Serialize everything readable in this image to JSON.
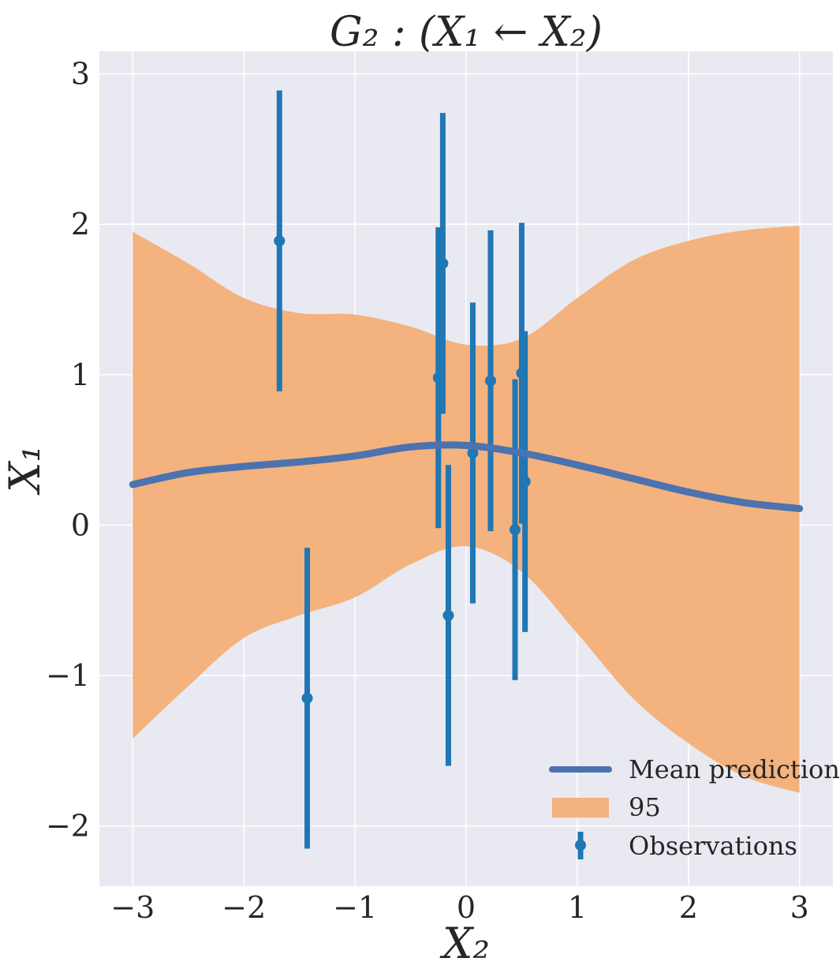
{
  "chart_data": {
    "type": "line",
    "title": "G₂ : (X₁ ← X₂)",
    "xlabel": "X₂",
    "ylabel": "X₁",
    "xlim": [
      -3.3,
      3.3
    ],
    "ylim": [
      -2.4,
      3.15
    ],
    "xticks": [
      -3,
      -2,
      -1,
      0,
      1,
      2,
      3
    ],
    "xtick_labels": [
      "−3",
      "−2",
      "−1",
      "0",
      "1",
      "2",
      "3"
    ],
    "yticks": [
      -2,
      -1,
      0,
      1,
      2,
      3
    ],
    "ytick_labels": [
      "−2",
      "−1",
      "0",
      "1",
      "2",
      "3"
    ],
    "grid": true,
    "legend_position": "lower-right",
    "colors": {
      "background": "#e9e9f1",
      "grid": "#ffffff",
      "mean": "#4c72b0",
      "band": "#f4b27e",
      "observations": "#1f77b4"
    },
    "series": [
      {
        "name": "Mean prediction",
        "x": [
          -3,
          -2.5,
          -2,
          -1.5,
          -1,
          -0.5,
          0,
          0.5,
          1,
          1.5,
          2,
          2.5,
          3
        ],
        "y": [
          0.27,
          0.35,
          0.39,
          0.42,
          0.46,
          0.52,
          0.53,
          0.48,
          0.4,
          0.31,
          0.22,
          0.15,
          0.11
        ]
      },
      {
        "name": "95",
        "type": "area",
        "x": [
          -3,
          -2.5,
          -2,
          -1.5,
          -1,
          -0.5,
          0,
          0.5,
          1,
          1.5,
          2,
          2.5,
          3
        ],
        "upper": [
          1.95,
          1.74,
          1.51,
          1.41,
          1.4,
          1.32,
          1.2,
          1.24,
          1.51,
          1.76,
          1.89,
          1.96,
          1.99
        ],
        "lower": [
          -1.42,
          -1.07,
          -0.75,
          -0.6,
          -0.48,
          -0.26,
          -0.14,
          -0.31,
          -0.72,
          -1.15,
          -1.45,
          -1.67,
          -1.78
        ]
      },
      {
        "name": "Observations",
        "type": "errorbar",
        "points": [
          {
            "x": -1.68,
            "y": 1.89,
            "err": 1.0
          },
          {
            "x": -1.43,
            "y": -1.15,
            "err": 1.0
          },
          {
            "x": -0.25,
            "y": 0.98,
            "err": 1.0
          },
          {
            "x": -0.21,
            "y": 1.74,
            "err": 1.0
          },
          {
            "x": -0.16,
            "y": -0.6,
            "err": 1.0
          },
          {
            "x": 0.06,
            "y": 0.48,
            "err": 1.0
          },
          {
            "x": 0.22,
            "y": 0.96,
            "err": 1.0
          },
          {
            "x": 0.44,
            "y": -0.03,
            "err": 1.0
          },
          {
            "x": 0.5,
            "y": 1.01,
            "err": 1.0
          },
          {
            "x": 0.53,
            "y": 0.29,
            "err": 1.0
          }
        ]
      }
    ]
  }
}
